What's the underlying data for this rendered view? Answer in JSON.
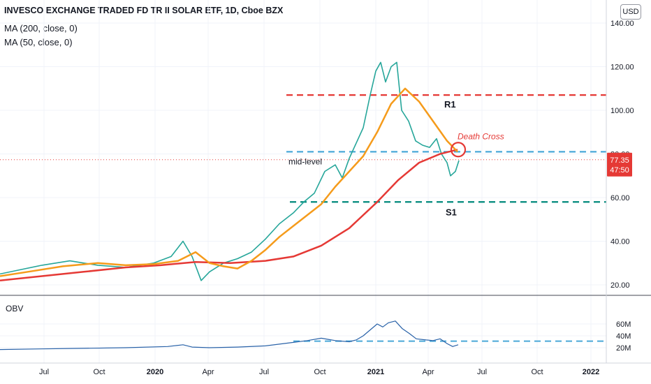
{
  "header": {
    "title": "INVESCO EXCHANGE TRADED FD TR II SOLAR ETF, 1D, Cboe BZX",
    "indicator_1": "MA (200, close, 0)",
    "indicator_2": "MA (50, close, 0)",
    "currency": "USD"
  },
  "chart_data": {
    "type": "line",
    "price_axis": {
      "ticks": [
        "140.00",
        "120.00",
        "100.00",
        "80.00",
        "60.00",
        "40.00",
        "20.00"
      ],
      "values": [
        140,
        120,
        100,
        80,
        60,
        40,
        20
      ]
    },
    "obv_axis": {
      "ticks": [
        "60M",
        "40M",
        "20M"
      ],
      "values": [
        60,
        40,
        20
      ]
    },
    "time_axis": {
      "ticks": [
        "Jul",
        "Oct",
        "2020",
        "Apr",
        "Jul",
        "Oct",
        "2021",
        "Apr",
        "Jul",
        "Oct",
        "2022"
      ]
    },
    "last_price": {
      "label": "77.35",
      "countdown": "47:50",
      "value": 77.35
    },
    "levels": [
      {
        "name": "R1",
        "value": 107,
        "color": "#e53935"
      },
      {
        "name": "mid-level",
        "value": 81,
        "color": "#4aa8d8"
      },
      {
        "name": "S1",
        "value": 58,
        "color": "#00897b"
      }
    ],
    "annotation": {
      "text": "Death Cross",
      "color": "#e53935"
    },
    "obv_label": "OBV",
    "obv_level": 31,
    "series": [
      {
        "name": "MA (200, close, 0)",
        "color": "#e53935",
        "points": [
          [
            0,
            22
          ],
          [
            60,
            24
          ],
          [
            120,
            26
          ],
          [
            180,
            28
          ],
          [
            230,
            29
          ],
          [
            280,
            30.5
          ],
          [
            330,
            30
          ],
          [
            380,
            31
          ],
          [
            420,
            33
          ],
          [
            460,
            38
          ],
          [
            500,
            46
          ],
          [
            540,
            58
          ],
          [
            570,
            68
          ],
          [
            600,
            76
          ],
          [
            630,
            80
          ],
          [
            655,
            82
          ]
        ]
      },
      {
        "name": "MA (50, close, 0)",
        "color": "#f59b1b",
        "points": [
          [
            0,
            24
          ],
          [
            40,
            26
          ],
          [
            90,
            28.5
          ],
          [
            140,
            30
          ],
          [
            180,
            29
          ],
          [
            220,
            29.5
          ],
          [
            255,
            31
          ],
          [
            280,
            35
          ],
          [
            300,
            30
          ],
          [
            320,
            28.5
          ],
          [
            340,
            27.5
          ],
          [
            360,
            31
          ],
          [
            380,
            36
          ],
          [
            400,
            42
          ],
          [
            420,
            47
          ],
          [
            440,
            52
          ],
          [
            460,
            57
          ],
          [
            480,
            65
          ],
          [
            500,
            72
          ],
          [
            520,
            79
          ],
          [
            540,
            90
          ],
          [
            560,
            103
          ],
          [
            580,
            110
          ],
          [
            600,
            104
          ],
          [
            620,
            95
          ],
          [
            640,
            86
          ],
          [
            655,
            81
          ]
        ]
      }
    ],
    "price_path": [
      [
        0,
        25
      ],
      [
        30,
        27
      ],
      [
        60,
        29
      ],
      [
        100,
        31
      ],
      [
        140,
        29
      ],
      [
        180,
        28
      ],
      [
        220,
        30
      ],
      [
        245,
        33
      ],
      [
        262,
        40
      ],
      [
        275,
        33
      ],
      [
        288,
        22
      ],
      [
        300,
        26
      ],
      [
        320,
        30
      ],
      [
        340,
        32
      ],
      [
        360,
        35
      ],
      [
        380,
        41
      ],
      [
        400,
        48
      ],
      [
        420,
        53
      ],
      [
        435,
        58
      ],
      [
        450,
        62
      ],
      [
        465,
        72
      ],
      [
        480,
        75
      ],
      [
        490,
        69
      ],
      [
        500,
        78
      ],
      [
        510,
        85
      ],
      [
        520,
        92
      ],
      [
        530,
        107
      ],
      [
        538,
        118
      ],
      [
        545,
        122
      ],
      [
        552,
        113
      ],
      [
        560,
        120
      ],
      [
        568,
        122
      ],
      [
        575,
        100
      ],
      [
        585,
        95
      ],
      [
        595,
        86
      ],
      [
        605,
        84
      ],
      [
        615,
        83
      ],
      [
        625,
        87
      ],
      [
        632,
        80
      ],
      [
        640,
        76
      ],
      [
        645,
        70
      ],
      [
        652,
        72
      ],
      [
        657,
        77
      ]
    ],
    "obv_path": [
      [
        0,
        17
      ],
      [
        60,
        18
      ],
      [
        120,
        19
      ],
      [
        180,
        20
      ],
      [
        240,
        22
      ],
      [
        262,
        25
      ],
      [
        275,
        21
      ],
      [
        300,
        20
      ],
      [
        340,
        21
      ],
      [
        380,
        23
      ],
      [
        420,
        29
      ],
      [
        440,
        32
      ],
      [
        460,
        36
      ],
      [
        470,
        34
      ],
      [
        480,
        32
      ],
      [
        500,
        30
      ],
      [
        510,
        33
      ],
      [
        520,
        40
      ],
      [
        530,
        50
      ],
      [
        540,
        60
      ],
      [
        548,
        55
      ],
      [
        556,
        62
      ],
      [
        566,
        65
      ],
      [
        576,
        52
      ],
      [
        586,
        44
      ],
      [
        596,
        35
      ],
      [
        610,
        33
      ],
      [
        620,
        32
      ],
      [
        630,
        35
      ],
      [
        640,
        27
      ],
      [
        648,
        22
      ],
      [
        656,
        25
      ]
    ]
  }
}
